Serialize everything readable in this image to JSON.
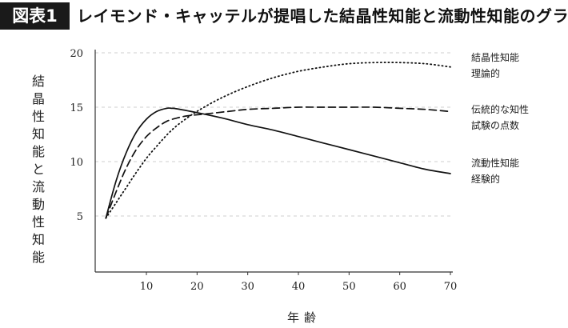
{
  "header": {
    "badge": "図表1",
    "title": "レイモンド・キャッテルが提唱した結晶性知能と流動性知能のグラフ"
  },
  "chart_data": {
    "type": "line",
    "title": "レイモンド・キャッテルが提唱した結晶性知能と流動性知能のグラフ",
    "xlabel": "年齢",
    "ylabel": "結晶性知能と流動性知能",
    "xlim": [
      0,
      72
    ],
    "ylim": [
      0,
      20
    ],
    "xticks": [
      "10",
      "20",
      "30",
      "40",
      "50",
      "60",
      "70"
    ],
    "yticks": [
      "5",
      "10",
      "15",
      "20"
    ],
    "grid": "horizontal dashed",
    "legend_placement": "right",
    "series": [
      {
        "name": "結晶性知能 理論的",
        "label_lines": [
          "結晶性知能",
          "理論的"
        ],
        "style": "dotted",
        "x": [
          2,
          4,
          6,
          8,
          10,
          12,
          15,
          18,
          21,
          25,
          30,
          35,
          40,
          45,
          50,
          55,
          60,
          65,
          70
        ],
        "y": [
          4.8,
          6.2,
          7.6,
          9.0,
          10.3,
          11.4,
          12.9,
          14.0,
          14.9,
          15.9,
          16.9,
          17.7,
          18.3,
          18.7,
          19.0,
          19.1,
          19.1,
          19.0,
          18.7
        ]
      },
      {
        "name": "伝統的な知性 試験の点数",
        "label_lines": [
          "伝統的な知性",
          "試験の点数"
        ],
        "style": "dashed",
        "x": [
          2,
          4,
          6,
          8,
          10,
          12,
          14,
          16,
          18,
          22,
          26,
          30,
          35,
          40,
          45,
          50,
          55,
          60,
          65,
          70
        ],
        "y": [
          4.8,
          7.2,
          9.4,
          11.1,
          12.3,
          13.1,
          13.7,
          14.0,
          14.2,
          14.4,
          14.6,
          14.8,
          14.9,
          15.0,
          15.0,
          15.0,
          15.0,
          14.9,
          14.8,
          14.6
        ]
      },
      {
        "name": "流動性知能 経験的",
        "label_lines": [
          "流動性知能",
          "経験的"
        ],
        "style": "solid",
        "x": [
          2,
          4,
          6,
          8,
          10,
          12,
          14,
          15,
          16,
          20,
          25,
          30,
          35,
          40,
          45,
          50,
          55,
          60,
          65,
          70
        ],
        "y": [
          4.8,
          8.2,
          10.8,
          12.7,
          13.9,
          14.6,
          14.9,
          14.9,
          14.85,
          14.5,
          14.0,
          13.4,
          12.9,
          12.3,
          11.7,
          11.1,
          10.5,
          9.9,
          9.3,
          8.9
        ]
      }
    ]
  }
}
